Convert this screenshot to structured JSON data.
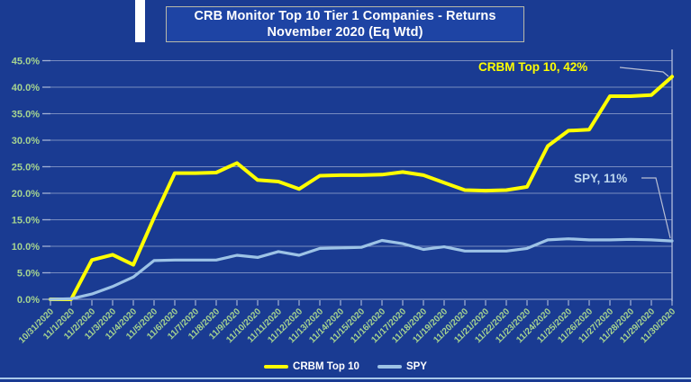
{
  "title": {
    "line1": "CRB Monitor Top 10 Tier 1 Companies - Returns",
    "line2": "November 2020 (Eq Wtd)"
  },
  "legend": [
    {
      "label": "CRBM Top 10",
      "color": "#FFFF00"
    },
    {
      "label": "SPY",
      "color": "#9DC3E6"
    }
  ],
  "annotations": [
    {
      "text": "CRBM Top 10, 42%",
      "color": "#FFFF00"
    },
    {
      "text": "SPY, 11%",
      "color": "#BDD7EE"
    }
  ],
  "colors": {
    "background": "#1A3B92",
    "title_box_fill": "#1E44A4",
    "title_box_border": "#B9B9A8",
    "gridline": "#ABB8D9",
    "axis_label_green": "#A6D490",
    "crbm_line": "#FFFF00",
    "spy_line": "#9DC3E6",
    "leader_line": "#B9BFD4",
    "legend_text": "#FFFFFF",
    "bottom_frame": "#A9C9EA"
  },
  "chart_data": {
    "type": "line",
    "title": "CRB Monitor Top 10 Tier 1 Companies - Returns November 2020 (Eq Wtd)",
    "xlabel": "",
    "ylabel": "",
    "ylim": [
      0,
      45
    ],
    "y_tick_step": 5,
    "y_tick_labels": [
      "0.0%",
      "5.0%",
      "10.0%",
      "15.0%",
      "20.0%",
      "25.0%",
      "30.0%",
      "35.0%",
      "40.0%",
      "45.0%"
    ],
    "grid": true,
    "legend_position": "bottom",
    "x": [
      "10/31/2020",
      "11/1/2020",
      "11/2/2020",
      "11/3/2020",
      "11/4/2020",
      "11/5/2020",
      "11/6/2020",
      "11/7/2020",
      "11/8/2020",
      "11/9/2020",
      "11/10/2020",
      "11/11/2020",
      "11/12/2020",
      "11/13/2020",
      "11/14/2020",
      "11/15/2020",
      "11/16/2020",
      "11/17/2020",
      "11/18/2020",
      "11/19/2020",
      "11/20/2020",
      "11/21/2020",
      "11/22/2020",
      "11/23/2020",
      "11/24/2020",
      "11/25/2020",
      "11/26/2020",
      "11/27/2020",
      "11/28/2020",
      "11/29/2020",
      "11/30/2020"
    ],
    "series": [
      {
        "name": "CRBM Top 10",
        "color": "#FFFF00",
        "final_label": "CRBM Top 10, 42%",
        "values": [
          0.0,
          0.0,
          7.4,
          8.4,
          6.5,
          15.4,
          23.8,
          23.8,
          23.9,
          25.7,
          22.5,
          22.2,
          20.8,
          23.3,
          23.4,
          23.4,
          23.5,
          24.0,
          23.4,
          22.0,
          20.6,
          20.5,
          20.6,
          21.2,
          28.9,
          31.8,
          32.0,
          38.3,
          38.3,
          38.5,
          42.0
        ]
      },
      {
        "name": "SPY",
        "color": "#9DC3E6",
        "final_label": "SPY, 11%",
        "values": [
          0.0,
          0.1,
          1.0,
          2.4,
          4.2,
          7.3,
          7.4,
          7.4,
          7.4,
          8.3,
          7.9,
          9.0,
          8.3,
          9.6,
          9.7,
          9.8,
          11.1,
          10.5,
          9.4,
          9.9,
          9.1,
          9.1,
          9.1,
          9.6,
          11.2,
          11.4,
          11.2,
          11.2,
          11.3,
          11.2,
          11.0
        ]
      }
    ]
  }
}
